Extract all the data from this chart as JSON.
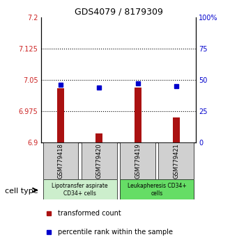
{
  "title": "GDS4079 / 8179309",
  "samples": [
    "GSM779418",
    "GSM779420",
    "GSM779419",
    "GSM779421"
  ],
  "transformed_counts": [
    7.03,
    6.922,
    7.032,
    6.96
  ],
  "percentile_ranks": [
    46,
    44,
    47,
    45
  ],
  "ylim_left": [
    6.9,
    7.2
  ],
  "ylim_right": [
    0,
    100
  ],
  "yticks_left": [
    6.9,
    6.975,
    7.05,
    7.125,
    7.2
  ],
  "yticks_right": [
    0,
    25,
    50,
    75,
    100
  ],
  "ytick_labels_left": [
    "6.9",
    "6.975",
    "7.05",
    "7.125",
    "7.2"
  ],
  "ytick_labels_right": [
    "0",
    "25",
    "50",
    "75",
    "100%"
  ],
  "hlines": [
    6.975,
    7.05,
    7.125
  ],
  "cell_groups": [
    {
      "label": "Lipotransfer aspirate\nCD34+ cells",
      "samples": [
        0,
        1
      ],
      "color": "#cceecc"
    },
    {
      "label": "Leukapheresis CD34+\ncells",
      "samples": [
        2,
        3
      ],
      "color": "#66dd66"
    }
  ],
  "bar_color": "#aa1111",
  "dot_color": "#0000cc",
  "bar_bottom": 6.9,
  "sample_box_color": "#d0d0d0",
  "legend_red_label": "transformed count",
  "legend_blue_label": "percentile rank within the sample",
  "cell_type_label": "cell type"
}
